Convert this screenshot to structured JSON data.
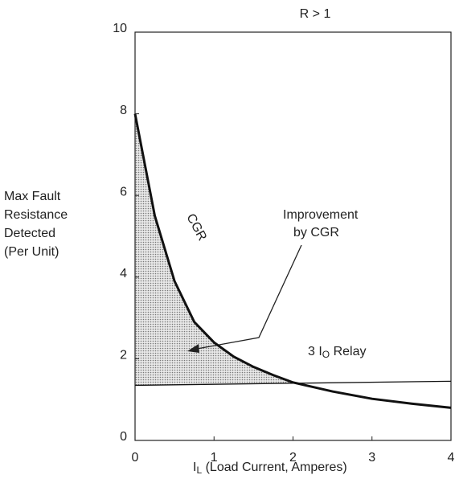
{
  "chart_data": {
    "type": "line",
    "title": "R > 1",
    "ylabel": [
      "Max Fault",
      "Resistance",
      "Detected",
      "(Per Unit)"
    ],
    "xlabel": {
      "main": "I",
      "sub": "L",
      "rest": " (Load Current, Amperes)"
    },
    "xlim": [
      0,
      4
    ],
    "xticks": [
      0,
      1,
      2,
      3,
      4
    ],
    "ylim": [
      0,
      10
    ],
    "yticks": [
      0,
      2,
      4,
      6,
      8,
      10
    ],
    "series": [
      {
        "name": "CGR",
        "color": "#111111",
        "x": [
          0,
          0.25,
          0.5,
          0.75,
          1,
          1.25,
          1.5,
          1.75,
          2,
          2.5,
          3,
          3.5,
          4
        ],
        "values": [
          8,
          5.5,
          3.9,
          2.9,
          2.4,
          2.05,
          1.8,
          1.6,
          1.42,
          1.2,
          1.02,
          0.9,
          0.8
        ]
      },
      {
        "name": {
          "main": "3 I",
          "sub": "O",
          "rest": " Relay"
        },
        "color": "#111111",
        "x": [
          0,
          4
        ],
        "values": [
          1.35,
          1.45
        ]
      }
    ],
    "annotations": [
      "Improvement",
      "by CGR"
    ]
  }
}
